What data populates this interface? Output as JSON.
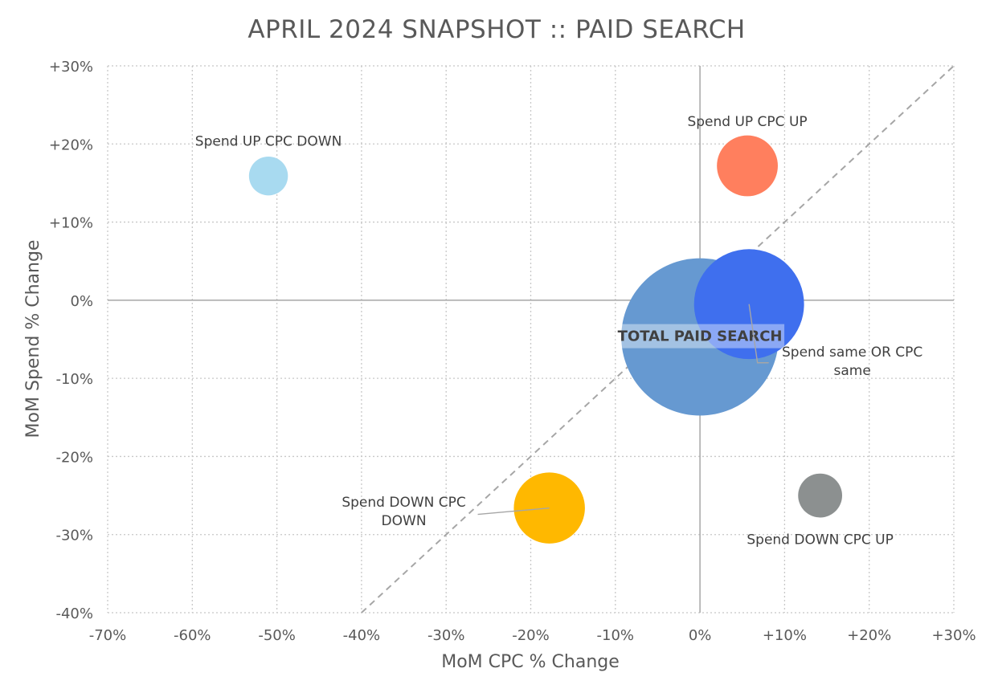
{
  "chart_data": {
    "type": "bubble",
    "title": "APRIL 2024 SNAPSHOT :: PAID SEARCH",
    "xlabel": "MoM CPC % Change",
    "ylabel": "MoM Spend % Change",
    "xlim": [
      -70,
      30
    ],
    "ylim": [
      -40,
      30
    ],
    "x_ticks": [
      -70,
      -60,
      -50,
      -40,
      -30,
      -20,
      -10,
      0,
      10,
      20,
      30
    ],
    "y_ticks": [
      -40,
      -30,
      -20,
      -10,
      0,
      10,
      20,
      30
    ],
    "x_tick_labels": [
      "-70%",
      "-60%",
      "-50%",
      "-40%",
      "-30%",
      "-20%",
      "-10%",
      "0%",
      "+10%",
      "+20%",
      "+30%"
    ],
    "y_tick_labels": [
      "-40%",
      "-30%",
      "-20%",
      "-10%",
      "0%",
      "+10%",
      "+20%",
      "+30%"
    ],
    "grid": true,
    "diagonal_reference": {
      "from": [
        -40,
        -40
      ],
      "to": [
        30,
        30
      ],
      "style": "dashed"
    },
    "points": [
      {
        "label": "TOTAL PAID SEARCH",
        "x": 0,
        "y": -4.7,
        "size": 9.3,
        "color": "#6699D1",
        "label_x": 0,
        "label_y": -4.6,
        "bold": true
      },
      {
        "label": "Spend same OR CPC same",
        "label_lines": [
          "Spend same OR CPC",
          "same"
        ],
        "x": 5.8,
        "y": -0.5,
        "size": 6.5,
        "color": "#3F6FEE",
        "label_x": 18,
        "label_y": -7.8,
        "leader": true
      },
      {
        "label": "Spend UP CPC UP",
        "x": 5.6,
        "y": 17.2,
        "size": 3.6,
        "color": "#FF7F5E",
        "label_x": 5.6,
        "label_y": 22.9
      },
      {
        "label": "Spend UP CPC DOWN",
        "x": -51,
        "y": 15.9,
        "size": 2.3,
        "color": "#A8DAF0",
        "label_x": -51,
        "label_y": 20.4
      },
      {
        "label": "Spend DOWN CPC DOWN",
        "label_lines": [
          "Spend DOWN CPC",
          "DOWN"
        ],
        "x": -17.8,
        "y": -26.6,
        "size": 4.2,
        "color": "#FFB800",
        "label_x": -35,
        "label_y": -27,
        "leader": true
      },
      {
        "label": "Spend DOWN CPC UP",
        "x": 14.2,
        "y": -25,
        "size": 2.6,
        "color": "#8C9090",
        "label_x": 14.2,
        "label_y": -30.6
      }
    ]
  }
}
